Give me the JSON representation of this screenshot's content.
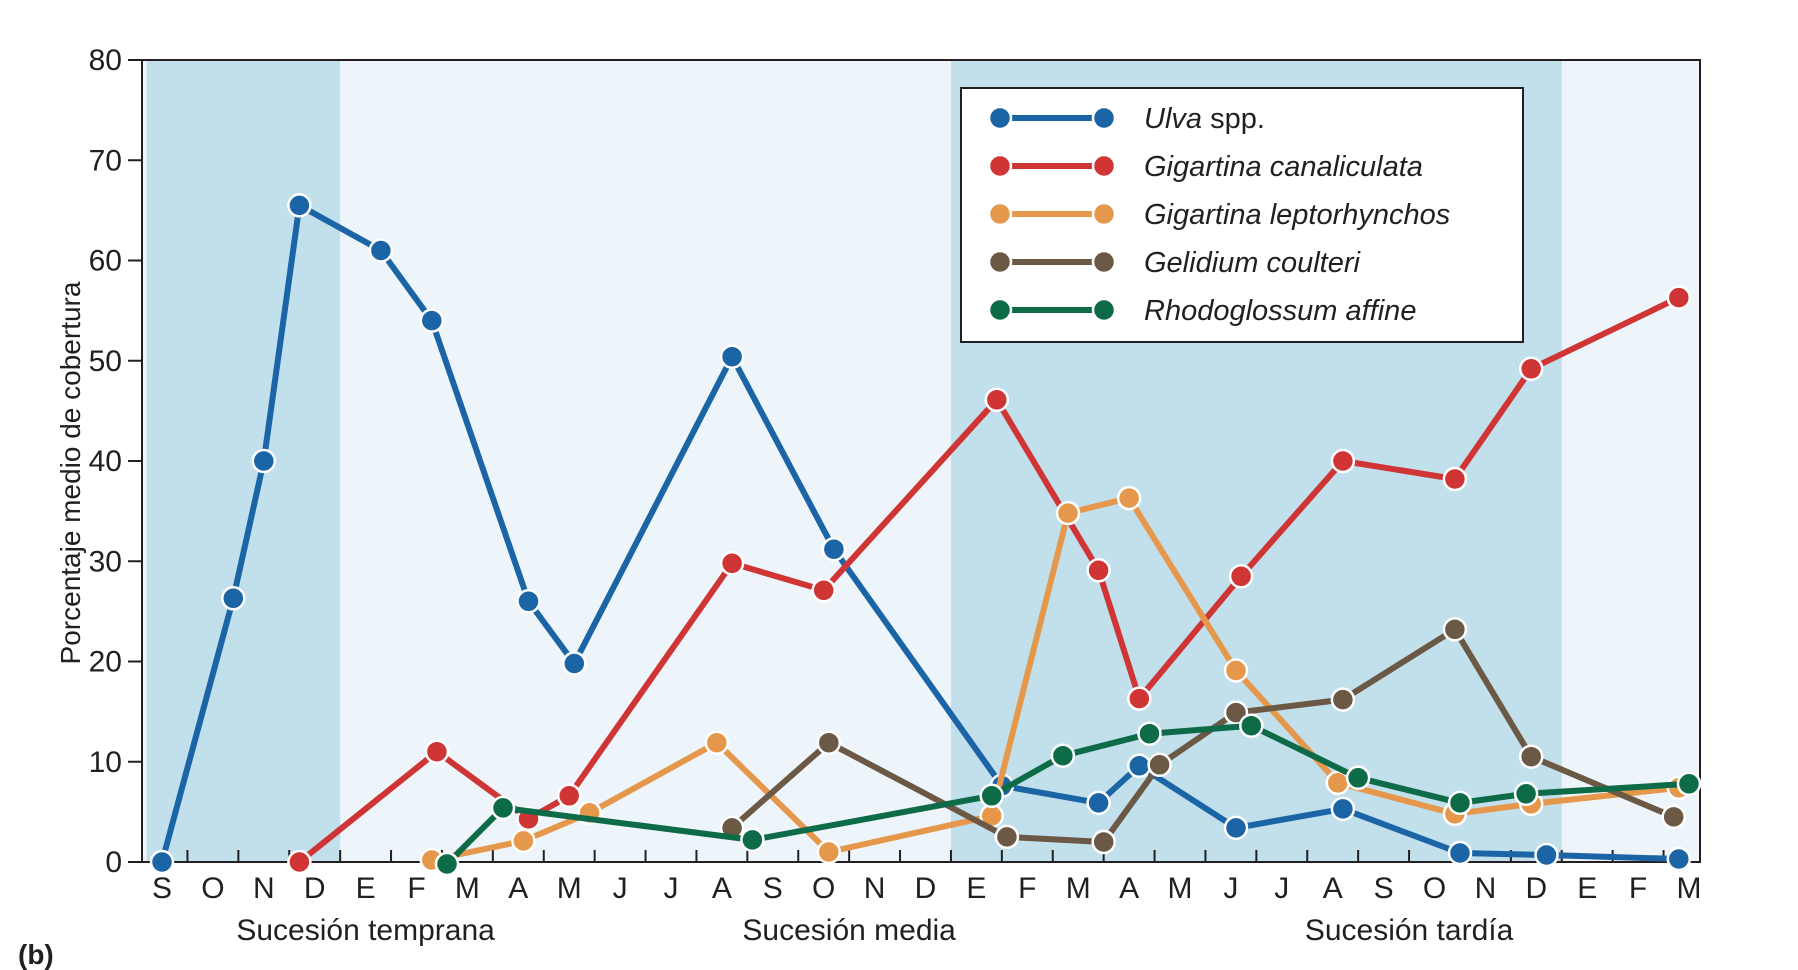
{
  "chart_data": {
    "type": "line",
    "panel_label": "(b)",
    "ylabel": "Porcentaje medio de cobertura",
    "ylim": [
      0,
      80
    ],
    "yticks": [
      0,
      10,
      20,
      30,
      40,
      50,
      60,
      70,
      80
    ],
    "xlim": [
      0,
      30
    ],
    "categories": [
      "S",
      "O",
      "N",
      "D",
      "E",
      "F",
      "M",
      "A",
      "M",
      "J",
      "J",
      "A",
      "S",
      "O",
      "N",
      "D",
      "E",
      "F",
      "M",
      "A",
      "M",
      "J",
      "J",
      "A",
      "S",
      "O",
      "N",
      "D",
      "E",
      "F",
      "M"
    ],
    "phases": [
      {
        "label": "Sucesión temprana",
        "center": 4
      },
      {
        "label": "Sucesión media",
        "center": 13.5
      },
      {
        "label": "Sucesión tardía",
        "center": 24.5
      }
    ],
    "shaded_ranges": [
      [
        -0.3,
        3.5
      ],
      [
        15.5,
        27.5
      ]
    ],
    "grid": false,
    "legend_position": "top-right",
    "series": [
      {
        "name": "Ulva",
        "name_suffix": " spp.",
        "color": "#1b65a6",
        "points": [
          [
            0,
            0
          ],
          [
            1.4,
            26.3
          ],
          [
            2,
            40
          ],
          [
            2.7,
            65.5
          ],
          [
            4.3,
            61
          ],
          [
            5.3,
            54
          ],
          [
            7.2,
            26
          ],
          [
            8.1,
            19.8
          ],
          [
            11.2,
            50.4
          ],
          [
            13.2,
            31.2
          ],
          [
            16.5,
            7.6
          ],
          [
            18.4,
            5.9
          ],
          [
            19.2,
            9.6
          ],
          [
            21.1,
            3.4
          ],
          [
            23.2,
            5.3
          ],
          [
            25.5,
            0.9
          ],
          [
            27.2,
            0.7
          ],
          [
            29.8,
            0.3
          ]
        ]
      },
      {
        "name": "Gigartina canaliculata",
        "color": "#d03535",
        "points": [
          [
            2.7,
            0
          ],
          [
            5.4,
            11
          ],
          [
            7.2,
            4.3
          ],
          [
            8,
            6.6
          ],
          [
            11.2,
            29.8
          ],
          [
            13,
            27.1
          ],
          [
            16.4,
            46.1
          ],
          [
            18.4,
            29.1
          ],
          [
            19.2,
            16.3
          ],
          [
            21.2,
            28.5
          ],
          [
            23.2,
            40
          ],
          [
            25.4,
            38.2
          ],
          [
            26.9,
            49.2
          ],
          [
            29.8,
            56.3
          ]
        ]
      },
      {
        "name": "Gigartina leptorhynchos",
        "color": "#e5984b",
        "points": [
          [
            5.3,
            0.2
          ],
          [
            7.1,
            2.1
          ],
          [
            8.4,
            4.9
          ],
          [
            10.9,
            11.9
          ],
          [
            13.1,
            1
          ],
          [
            16.3,
            4.6
          ],
          [
            17.8,
            34.8
          ],
          [
            19,
            36.3
          ],
          [
            21.1,
            19.1
          ],
          [
            23.1,
            7.9
          ],
          [
            25.4,
            4.8
          ],
          [
            26.9,
            5.8
          ],
          [
            29.8,
            7.4
          ]
        ]
      },
      {
        "name": "Gelidium coulteri",
        "color": "#6b5845",
        "points": [
          [
            11.2,
            3.4
          ],
          [
            13.1,
            11.9
          ],
          [
            16.6,
            2.5
          ],
          [
            18.5,
            2
          ],
          [
            19.6,
            9.7
          ],
          [
            21.1,
            14.9
          ],
          [
            23.2,
            16.2
          ],
          [
            25.4,
            23.2
          ],
          [
            26.9,
            10.5
          ],
          [
            29.7,
            4.5
          ]
        ]
      },
      {
        "name": "Rhodoglossum affine",
        "color": "#0e6b47",
        "points": [
          [
            5.6,
            -0.2
          ],
          [
            6.7,
            5.4
          ],
          [
            11.6,
            2.2
          ],
          [
            16.3,
            6.6
          ],
          [
            17.7,
            10.6
          ],
          [
            19.4,
            12.8
          ],
          [
            21.4,
            13.6
          ],
          [
            23.5,
            8.4
          ],
          [
            25.5,
            5.9
          ],
          [
            26.8,
            6.8
          ],
          [
            30,
            7.8
          ]
        ]
      }
    ]
  }
}
